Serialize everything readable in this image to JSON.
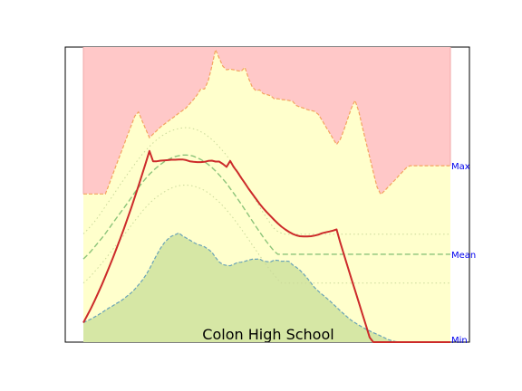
{
  "chart_data": {
    "type": "area",
    "title": "Colon High School",
    "xlabel": "",
    "ylabel": "",
    "grid": false,
    "ylim": [
      0,
      100
    ],
    "right_labels": [
      {
        "label": "Max",
        "value": 59.8
      },
      {
        "label": "Mean",
        "value": 29.8
      },
      {
        "label": "Min",
        "value": 0
      }
    ],
    "x": [
      0,
      1,
      2,
      3,
      4,
      5,
      6,
      7,
      8,
      9,
      10,
      11,
      12,
      13,
      14,
      15,
      16,
      17,
      18,
      19,
      20,
      21,
      22,
      23,
      24,
      25,
      26,
      27,
      28,
      29,
      30,
      31,
      32,
      33,
      34,
      35,
      36,
      37,
      38,
      39,
      40,
      41,
      42,
      43,
      44,
      45,
      46,
      47,
      48,
      49,
      50,
      51,
      52,
      53,
      54,
      55,
      56,
      57,
      58,
      59,
      60,
      61,
      62,
      63,
      64,
      65,
      66,
      67,
      68,
      69,
      70,
      71,
      72,
      73,
      74,
      75,
      76,
      77,
      78,
      79,
      80,
      81,
      82,
      83,
      84,
      85,
      86,
      87,
      88,
      89,
      90,
      91,
      92,
      93,
      94,
      95,
      96,
      97,
      98,
      99,
      100
    ],
    "series": [
      {
        "role": "max_band",
        "color": "#f4a460",
        "fill": "#ffc8c8",
        "values": [
          50.2,
          50.2,
          50.2,
          50.2,
          50.2,
          50.2,
          50.2,
          53.4,
          56.8,
          60.1,
          63.4,
          66.7,
          70,
          73.3,
          76.6,
          78,
          75,
          72.1,
          69.3,
          70.5,
          71.7,
          72.9,
          73.8,
          74.8,
          75.7,
          76.6,
          77.6,
          78.5,
          79.4,
          80.8,
          82.2,
          83.8,
          85.8,
          85.8,
          88.5,
          93.5,
          99.1,
          96.3,
          93.5,
          92.3,
          92.5,
          92.3,
          92,
          91.8,
          93.1,
          89.4,
          86.5,
          85.2,
          85.5,
          84.2,
          83.9,
          83.5,
          82.5,
          82.5,
          82.2,
          82.1,
          81.9,
          81.6,
          80.2,
          79.7,
          79.3,
          78.8,
          78.5,
          78.2,
          77.2,
          75.2,
          73.1,
          71.1,
          69,
          67,
          68.7,
          72,
          75.6,
          79.2,
          81.9,
          78.3,
          72.9,
          67.8,
          62.7,
          57.6,
          52.6,
          50.1,
          51.2,
          52.5,
          53.8,
          55.1,
          56.5,
          57.8,
          59.1,
          59.8,
          59.8,
          59.8,
          59.8,
          59.8,
          59.8,
          59.8,
          59.8,
          59.8,
          59.8,
          59.8,
          59.8
        ]
      },
      {
        "role": "min_band",
        "color": "#6aa3b7",
        "fill": "#d6e7a5",
        "values": [
          6.6,
          7.2,
          7.8,
          8.5,
          9.2,
          10,
          10.8,
          11.6,
          12.3,
          13.1,
          13.8,
          14.7,
          15.7,
          16.7,
          17.9,
          19.4,
          20.9,
          22.7,
          24.8,
          27.2,
          29.6,
          31.8,
          33.6,
          34.9,
          35.9,
          36.4,
          37,
          36,
          35.3,
          34.6,
          33.8,
          33.2,
          32.8,
          32.3,
          31.5,
          30.5,
          28.7,
          27.2,
          26.3,
          26,
          25.9,
          26.4,
          27,
          27.1,
          27.4,
          27.8,
          28.1,
          28.1,
          28.2,
          27.5,
          27.3,
          27.2,
          27.8,
          27.7,
          27.4,
          27.5,
          27.4,
          26.2,
          25.4,
          24.4,
          23.1,
          21.7,
          20.1,
          18.5,
          17.3,
          16.2,
          15.2,
          14.1,
          13,
          11.8,
          10.6,
          9.5,
          8.4,
          7.4,
          6.6,
          5.8,
          5.1,
          4.4,
          3.8,
          3.2,
          2.7,
          2.1,
          1.5,
          0.9,
          0.5,
          0.2,
          0,
          0,
          0,
          0,
          0,
          0,
          0,
          0,
          0,
          0,
          0,
          0,
          0,
          0,
          0
        ]
      },
      {
        "role": "mean",
        "color": "#8cc47a",
        "dashed": true,
        "values": [
          28.2,
          29.4,
          30.7,
          32.2,
          33.7,
          35.2,
          36.8,
          38.5,
          40.3,
          42,
          43.7,
          45.4,
          47.1,
          48.9,
          50.7,
          52.4,
          54,
          55.5,
          56.9,
          58.1,
          59.2,
          60.2,
          61.1,
          61.8,
          62.4,
          62.9,
          63.2,
          63.4,
          63.4,
          63.3,
          63,
          62.5,
          61.9,
          61.1,
          60.2,
          59.2,
          58,
          56.7,
          55.3,
          53.8,
          52.1,
          50.4,
          48.6,
          46.8,
          44.9,
          43,
          41.1,
          39.2,
          37.4,
          35.6,
          33.9,
          32.3,
          30.8,
          29.8,
          29.8,
          29.8,
          29.8,
          29.8,
          29.8,
          29.8,
          29.8,
          29.8,
          29.8,
          29.8,
          29.8,
          29.8,
          29.8,
          29.8,
          29.8,
          29.8,
          29.8,
          29.8,
          29.8,
          29.8,
          29.8,
          29.8,
          29.8,
          29.8,
          29.8,
          29.8,
          29.8,
          29.8,
          29.8,
          29.8,
          29.8,
          29.8,
          29.8,
          29.8,
          29.8,
          29.8,
          29.8,
          29.8,
          29.8,
          29.8,
          29.8,
          29.8,
          29.8,
          29.8,
          29.8,
          29.8,
          29.8
        ]
      },
      {
        "role": "upper_percentile",
        "color": "#c9d89a",
        "dotted": true,
        "values": [
          36.7,
          37.9,
          39.3,
          40.8,
          42.4,
          44.2,
          46,
          47.8,
          49.6,
          51.4,
          53.3,
          55.1,
          56.9,
          58.6,
          60.3,
          62,
          63.6,
          65,
          66.3,
          67.5,
          68.6,
          69.6,
          70.4,
          71.1,
          71.7,
          72.1,
          72.4,
          72.6,
          72.7,
          72.6,
          72.3,
          71.9,
          71.3,
          70.6,
          69.7,
          68.7,
          67.5,
          66.2,
          64.8,
          63.3,
          61.6,
          59.8,
          58,
          56.1,
          54.1,
          52.1,
          50,
          48,
          45.9,
          43.9,
          42,
          40.1,
          38.5,
          37.5,
          36.9,
          36.6,
          36.6,
          36.6,
          36.6,
          36.6,
          36.6,
          36.6,
          36.6,
          36.6,
          36.6,
          36.6,
          36.6,
          36.6,
          36.6,
          36.6,
          36.6,
          36.6,
          36.6,
          36.6,
          36.6,
          36.6,
          36.6,
          36.6,
          36.6,
          36.6,
          36.6,
          36.6,
          36.6,
          36.6,
          36.6,
          36.6,
          36.6,
          36.6,
          36.6,
          36.6,
          36.6,
          36.6,
          36.6,
          36.6,
          36.6,
          36.6,
          36.6,
          36.6,
          36.6,
          36.6,
          36.6
        ]
      },
      {
        "role": "lower_percentile",
        "color": "#c9d89a",
        "dotted": true,
        "values": [
          20,
          21.1,
          22.4,
          23.8,
          25.2,
          26.7,
          28.2,
          29.8,
          31.4,
          33,
          34.6,
          36.2,
          37.8,
          39.5,
          41.1,
          42.7,
          44.3,
          45.7,
          47,
          48.2,
          49.2,
          50.1,
          50.9,
          51.6,
          52.2,
          52.7,
          53,
          53.2,
          53.2,
          53.1,
          52.9,
          52.5,
          52,
          51.4,
          50.6,
          49.7,
          48.6,
          47.5,
          46.2,
          44.8,
          43.3,
          41.8,
          40.1,
          38.4,
          36.6,
          34.8,
          33,
          31.2,
          29.4,
          27.6,
          25.9,
          24.2,
          22.7,
          21.2,
          20,
          20,
          20,
          20,
          20,
          20,
          20,
          20,
          20,
          20,
          20,
          20,
          20,
          20,
          20,
          20,
          20,
          20,
          20,
          20,
          20,
          20,
          20,
          20,
          20,
          20,
          20,
          20,
          20,
          20,
          20,
          20,
          20,
          20,
          20,
          20,
          20,
          20,
          20,
          20,
          20,
          20,
          20,
          20,
          20,
          20,
          20
        ]
      },
      {
        "role": "current",
        "color": "#cc2a2a",
        "values": [
          6.6,
          8.9,
          11.3,
          13.9,
          16.6,
          19.4,
          22.3,
          25.3,
          28.4,
          31.6,
          34.9,
          38.3,
          41.8,
          45.4,
          49.1,
          52.9,
          56.8,
          60.8,
          64.8,
          61.3,
          61.3,
          61.5,
          61.6,
          61.7,
          61.8,
          61.8,
          61.9,
          61.9,
          61.7,
          61.3,
          61.1,
          61,
          61,
          61.1,
          61.4,
          61.5,
          61.2,
          61.2,
          60.4,
          59.4,
          61.4,
          59.3,
          57.6,
          55.7,
          53.9,
          52,
          50.3,
          48.6,
          46.9,
          45.4,
          44,
          42.7,
          41.4,
          40.2,
          39.1,
          38.2,
          37.4,
          36.7,
          36.2,
          35.9,
          35.8,
          35.8,
          35.9,
          36.1,
          36.4,
          36.9,
          37.2,
          37.5,
          37.8,
          38.2,
          33.7,
          29.6,
          25.6,
          21.6,
          17.6,
          13.6,
          9.6,
          5.6,
          1.6,
          0,
          0,
          0,
          0,
          0,
          0,
          0,
          0,
          0,
          0,
          0,
          0,
          0,
          0,
          0,
          0,
          0,
          0,
          0,
          0,
          0,
          0
        ]
      }
    ]
  },
  "colors": {
    "max_fill": "#ffc8c8",
    "middle_fill": "#ffffcc",
    "min_fill": "#d6e7a5",
    "right_label_color": "#0000ee"
  }
}
